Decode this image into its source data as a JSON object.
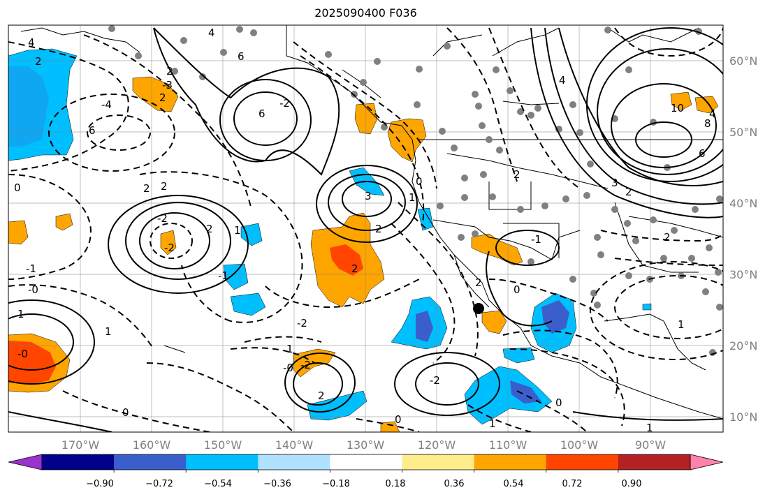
{
  "title": "2025090400 F036",
  "map": {
    "lon_labels": [
      "170°W",
      "160°W",
      "150°W",
      "140°W",
      "130°W",
      "120°W",
      "110°W",
      "100°W",
      "90°W"
    ],
    "lat_labels": [
      "60°N",
      "50°N",
      "40°N",
      "30°N",
      "20°N",
      "10°N"
    ],
    "grid": true
  },
  "colorbar": {
    "tick_labels": [
      "−0.90",
      "−0.72",
      "−0.54",
      "−0.36",
      "−0.18",
      "0.18",
      "0.36",
      "0.54",
      "0.72",
      "0.90"
    ],
    "colors": [
      "#9a32cd",
      "#00008b",
      "#3a5fcd",
      "#00bfff",
      "#b0e2ff",
      "#ffffff",
      "#ffec8b",
      "#ffa500",
      "#ff4500",
      "#b22222",
      "#ff82ab"
    ],
    "extend": "both"
  },
  "marker": {
    "label": "storm-center",
    "color": "#000000"
  },
  "contour_labels": [
    "4",
    "2",
    "6",
    "-4",
    "2",
    "-3",
    "2",
    "4",
    "6",
    "6",
    "-2",
    "2",
    "0",
    "-2",
    "2",
    "2",
    "-2",
    "1",
    "3",
    "2",
    "-1",
    "2",
    "-1",
    "-0",
    "-2",
    "-0",
    "1",
    "1",
    "-2",
    "-0",
    "2",
    "-2",
    "1",
    "0",
    "0",
    "2",
    "-1",
    "2",
    "0",
    "1",
    "1",
    "0",
    "0",
    "1",
    "10",
    "4",
    "2",
    "3",
    "8",
    "6",
    "4",
    "2",
    "1"
  ],
  "colors": {
    "contour": "#000000",
    "station": "#808080",
    "grid": "#808080"
  }
}
